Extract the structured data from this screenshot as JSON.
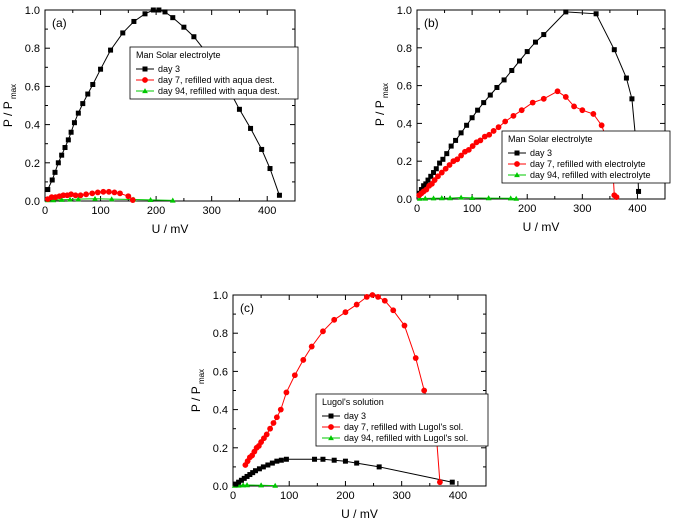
{
  "chart_data": [
    {
      "type": "line",
      "panel": "(a)",
      "xlabel": "U / mV",
      "ylabel": "P / P",
      "ylabel_sub": "max",
      "xlim": [
        0,
        450
      ],
      "ylim": [
        0,
        1.0
      ],
      "xticks": [
        0,
        100,
        200,
        300,
        400
      ],
      "yticks": [
        0.0,
        0.2,
        0.4,
        0.6,
        0.8,
        1.0
      ],
      "legend_title": "Man Solar electrolyte",
      "series": [
        {
          "name": "day 3",
          "color": "#000000",
          "marker": "square",
          "x": [
            5,
            13,
            18,
            24,
            30,
            36,
            42,
            47,
            53,
            60,
            68,
            77,
            86,
            100,
            118,
            140,
            160,
            180,
            195,
            205,
            216,
            230,
            250,
            268,
            287,
            310,
            330,
            350,
            370,
            390,
            405,
            422
          ],
          "y": [
            0.06,
            0.11,
            0.15,
            0.2,
            0.24,
            0.28,
            0.32,
            0.36,
            0.41,
            0.46,
            0.51,
            0.56,
            0.61,
            0.69,
            0.79,
            0.88,
            0.94,
            0.98,
            1.0,
            1.0,
            0.99,
            0.96,
            0.91,
            0.86,
            0.79,
            0.69,
            0.59,
            0.48,
            0.38,
            0.27,
            0.17,
            0.03
          ]
        },
        {
          "name": "day 7, refilled with aqua dest.",
          "color": "#ff0000",
          "marker": "circle",
          "x": [
            5,
            12,
            19,
            26,
            33,
            40,
            47,
            55,
            64,
            74,
            85,
            95,
            105,
            115,
            125,
            135,
            150,
            158
          ],
          "y": [
            0.01,
            0.02,
            0.02,
            0.025,
            0.03,
            0.03,
            0.035,
            0.03,
            0.03,
            0.035,
            0.04,
            0.045,
            0.048,
            0.048,
            0.045,
            0.04,
            0.025,
            0.005
          ]
        },
        {
          "name": "day 94, refilled with aqua dest.",
          "color": "#00c800",
          "marker": "triangle",
          "x": [
            5,
            15,
            30,
            45,
            60,
            90,
            120,
            160,
            190,
            230
          ],
          "y": [
            0.005,
            0.005,
            0.007,
            0.008,
            0.01,
            0.012,
            0.01,
            0.008,
            0.006,
            0.003
          ]
        }
      ]
    },
    {
      "type": "line",
      "panel": "(b)",
      "xlabel": "U / mV",
      "ylabel": "P / P",
      "ylabel_sub": "max",
      "xlim": [
        0,
        450
      ],
      "ylim": [
        0,
        1.0
      ],
      "xticks": [
        0,
        100,
        200,
        300,
        400
      ],
      "yticks": [
        0.0,
        0.2,
        0.4,
        0.6,
        0.8,
        1.0
      ],
      "legend_title": "Man Solar electrolyte",
      "series": [
        {
          "name": "day 3",
          "color": "#000000",
          "marker": "square",
          "x": [
            4,
            8,
            12,
            16,
            20,
            25,
            30,
            35,
            41,
            47,
            54,
            62,
            70,
            80,
            90,
            100,
            110,
            121,
            133,
            145,
            158,
            172,
            186,
            200,
            215,
            230,
            270,
            325,
            358,
            380,
            390,
            400,
            402
          ],
          "y": [
            0.03,
            0.05,
            0.07,
            0.08,
            0.1,
            0.12,
            0.14,
            0.16,
            0.19,
            0.21,
            0.24,
            0.28,
            0.31,
            0.35,
            0.39,
            0.43,
            0.47,
            0.51,
            0.55,
            0.59,
            0.63,
            0.68,
            0.73,
            0.78,
            0.83,
            0.87,
            0.99,
            0.98,
            0.79,
            0.64,
            0.53,
            0.22,
            0.04
          ]
        },
        {
          "name": "day 7, refilled with electrolyte",
          "color": "#ff0000",
          "marker": "circle",
          "x": [
            4,
            8,
            12,
            17,
            22,
            27,
            32,
            38,
            45,
            52,
            59,
            66,
            73,
            80,
            87,
            94,
            101,
            108,
            115,
            123,
            131,
            139,
            148,
            160,
            175,
            190,
            210,
            230,
            255,
            270,
            285,
            300,
            320,
            335,
            345,
            355,
            358,
            362
          ],
          "y": [
            0.02,
            0.03,
            0.04,
            0.05,
            0.07,
            0.08,
            0.1,
            0.12,
            0.14,
            0.16,
            0.18,
            0.2,
            0.21,
            0.23,
            0.25,
            0.26,
            0.28,
            0.3,
            0.31,
            0.33,
            0.34,
            0.36,
            0.38,
            0.41,
            0.44,
            0.47,
            0.51,
            0.53,
            0.57,
            0.54,
            0.49,
            0.47,
            0.45,
            0.39,
            0.31,
            0.18,
            0.02,
            0.01
          ]
        },
        {
          "name": "day 94, refilled with electrolyte",
          "color": "#00c800",
          "marker": "triangle",
          "x": [
            5,
            15,
            30,
            45,
            60,
            80,
            100,
            130,
            170,
            180
          ],
          "y": [
            0.002,
            0.003,
            0.004,
            0.005,
            0.005,
            0.008,
            0.006,
            0.005,
            0.004,
            0.002
          ]
        }
      ]
    },
    {
      "type": "line",
      "panel": "(c)",
      "xlabel": "U / mV",
      "ylabel": "P / P",
      "ylabel_sub": "max",
      "xlim": [
        0,
        450
      ],
      "ylim": [
        0,
        1.0
      ],
      "xticks": [
        0,
        100,
        200,
        300,
        400
      ],
      "yticks": [
        0.0,
        0.2,
        0.4,
        0.6,
        0.8,
        1.0
      ],
      "legend_title": "Lugol's solution",
      "series": [
        {
          "name": "day 3",
          "color": "#000000",
          "marker": "square",
          "x": [
            5,
            10,
            15,
            20,
            25,
            30,
            35,
            40,
            47,
            54,
            62,
            70,
            78,
            86,
            95,
            145,
            160,
            180,
            200,
            220,
            260,
            390
          ],
          "y": [
            0.01,
            0.02,
            0.03,
            0.04,
            0.05,
            0.06,
            0.07,
            0.08,
            0.09,
            0.1,
            0.11,
            0.12,
            0.13,
            0.135,
            0.14,
            0.14,
            0.14,
            0.135,
            0.13,
            0.12,
            0.1,
            0.02
          ]
        },
        {
          "name": "day 7, refilled with Lugol's sol.",
          "color": "#ff0000",
          "marker": "circle",
          "x": [
            22,
            26,
            30,
            34,
            38,
            42,
            46,
            50,
            55,
            60,
            66,
            72,
            78,
            85,
            95,
            110,
            125,
            140,
            160,
            180,
            200,
            220,
            238,
            248,
            258,
            270,
            285,
            305,
            325,
            340,
            360,
            368
          ],
          "y": [
            0.11,
            0.13,
            0.15,
            0.16,
            0.18,
            0.2,
            0.21,
            0.23,
            0.25,
            0.27,
            0.3,
            0.33,
            0.36,
            0.4,
            0.49,
            0.58,
            0.66,
            0.73,
            0.81,
            0.87,
            0.91,
            0.95,
            0.99,
            1.0,
            0.99,
            0.97,
            0.92,
            0.84,
            0.67,
            0.5,
            0.33,
            0.02
          ]
        },
        {
          "name": "day 94, refilled with Lugol's sol.",
          "color": "#00c800",
          "marker": "triangle",
          "x": [
            3,
            10,
            18,
            25,
            50,
            75
          ],
          "y": [
            0.002,
            0.003,
            0.004,
            0.005,
            0.004,
            0.002
          ]
        }
      ]
    }
  ]
}
